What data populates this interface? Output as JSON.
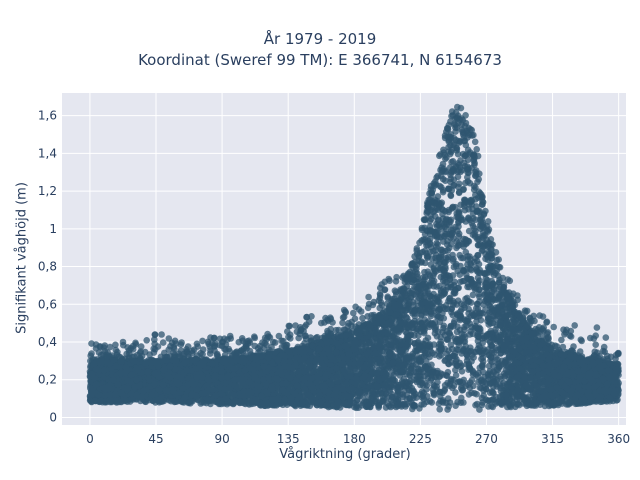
{
  "chart_data": {
    "type": "scatter",
    "title": "År 1979 - 2019",
    "subtitle": "Koordinat (Sweref 99 TM): E 366741, N 6154673",
    "xlabel": "Vågriktning (grader)",
    "ylabel": "Signifikant våghöjd (m)",
    "xlim": [
      -19,
      365
    ],
    "ylim": [
      -0.04,
      1.72
    ],
    "xticks": [
      0,
      45,
      90,
      135,
      180,
      225,
      270,
      315,
      360
    ],
    "xtick_labels": [
      "0",
      "45",
      "90",
      "135",
      "180",
      "225",
      "270",
      "315",
      "360"
    ],
    "yticks": [
      0,
      0.2,
      0.4,
      0.6,
      0.8,
      1,
      1.2,
      1.4,
      1.6
    ],
    "ytick_labels": [
      "0",
      "0,2",
      "0,4",
      "0,6",
      "0,8",
      "1",
      "1,2",
      "1,4",
      "1,6"
    ],
    "grid": true,
    "marker_color": "#2f5670",
    "plot_background": "#e5e7f0",
    "envelope": {
      "x": [
        0,
        15,
        30,
        45,
        60,
        75,
        90,
        105,
        120,
        135,
        150,
        165,
        180,
        190,
        200,
        210,
        220,
        225,
        230,
        235,
        240,
        245,
        250,
        255,
        260,
        265,
        270,
        275,
        280,
        290,
        300,
        315,
        330,
        345,
        360
      ],
      "lower": [
        0.08,
        0.08,
        0.08,
        0.08,
        0.08,
        0.07,
        0.07,
        0.07,
        0.06,
        0.06,
        0.06,
        0.05,
        0.05,
        0.05,
        0.05,
        0.05,
        0.04,
        0.04,
        0.04,
        0.04,
        0.04,
        0.04,
        0.04,
        0.04,
        0.04,
        0.04,
        0.04,
        0.04,
        0.05,
        0.05,
        0.06,
        0.06,
        0.07,
        0.08,
        0.09
      ],
      "dense_upper": [
        0.3,
        0.3,
        0.3,
        0.3,
        0.3,
        0.3,
        0.31,
        0.32,
        0.33,
        0.35,
        0.38,
        0.42,
        0.46,
        0.5,
        0.56,
        0.64,
        0.82,
        0.95,
        1.1,
        1.25,
        1.42,
        1.55,
        1.58,
        1.55,
        1.45,
        1.25,
        1.02,
        0.85,
        0.72,
        0.56,
        0.45,
        0.36,
        0.32,
        0.3,
        0.28
      ],
      "sparse_upper": [
        0.43,
        0.4,
        0.4,
        0.45,
        0.42,
        0.41,
        0.45,
        0.42,
        0.44,
        0.52,
        0.56,
        0.55,
        0.6,
        0.68,
        0.74,
        0.76,
        0.82,
        0.98,
        1.15,
        1.32,
        1.5,
        1.62,
        1.66,
        1.63,
        1.55,
        1.38,
        1.12,
        0.95,
        0.82,
        0.66,
        0.56,
        0.52,
        0.5,
        0.48,
        0.36
      ]
    },
    "point_count": 9000
  }
}
